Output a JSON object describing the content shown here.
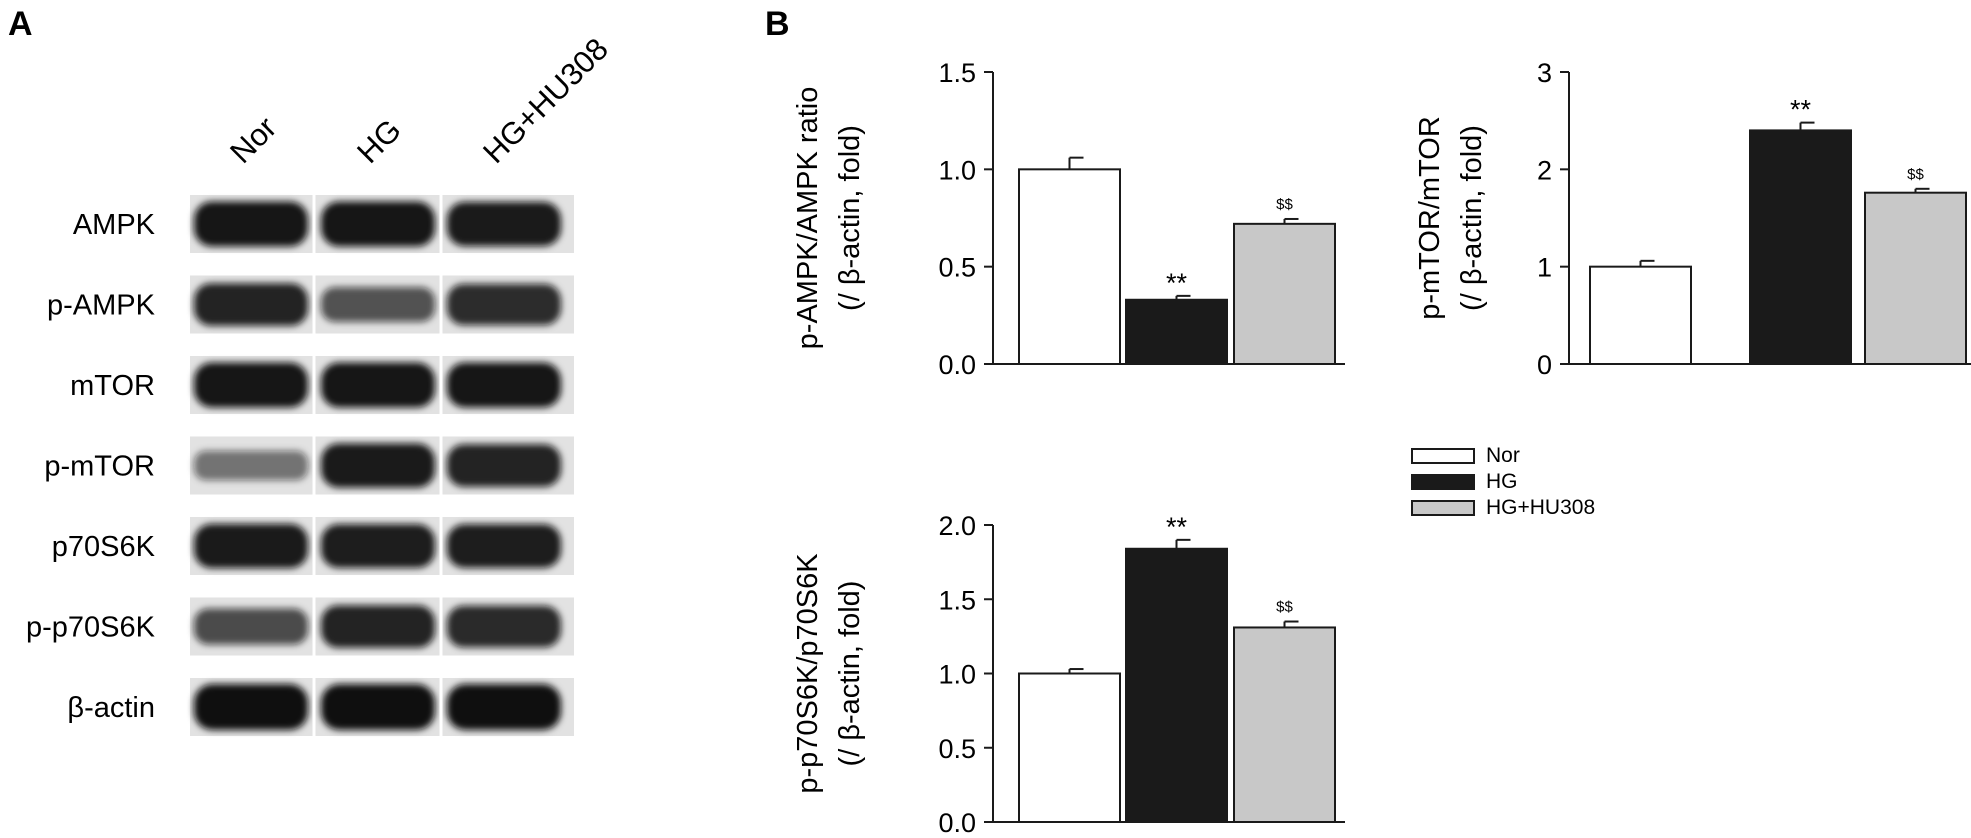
{
  "panels": {
    "a": "A",
    "b": "B"
  },
  "western_blot": {
    "lanes": [
      "Nor",
      "HG",
      "HG+HU308"
    ],
    "bands": [
      {
        "label": "AMPK",
        "intensity": [
          0.95,
          0.95,
          0.92
        ]
      },
      {
        "label": "p-AMPK",
        "intensity": [
          0.85,
          0.55,
          0.8
        ]
      },
      {
        "label": "mTOR",
        "intensity": [
          0.95,
          0.95,
          0.95
        ]
      },
      {
        "label": "p-mTOR",
        "intensity": [
          0.35,
          0.92,
          0.85
        ]
      },
      {
        "label": "p70S6K",
        "intensity": [
          0.92,
          0.9,
          0.9
        ]
      },
      {
        "label": "p-p70S6K",
        "intensity": [
          0.6,
          0.85,
          0.82
        ]
      },
      {
        "label": "β-actin",
        "intensity": [
          0.98,
          0.98,
          0.98
        ]
      }
    ],
    "colors": {
      "band": "#0d0d0d",
      "background": "#e2e2e2"
    }
  },
  "legend": [
    {
      "label": "Nor",
      "color": "#ffffff"
    },
    {
      "label": "HG",
      "color": "#1a1a1a"
    },
    {
      "label": "HG+HU308",
      "color": "#c8c8c8"
    }
  ],
  "chart_data": [
    {
      "type": "bar",
      "categories": [
        "Nor",
        "HG",
        "HG+HU308"
      ],
      "values": [
        1.0,
        0.33,
        0.72
      ],
      "errors": [
        0.06,
        0.02,
        0.025
      ],
      "annotations": [
        "",
        "**",
        "$$"
      ],
      "ylabel": "p-AMPK/AMPK ratio",
      "ylabel2": "(/ β-actin, fold)",
      "ylim": [
        0,
        1.5
      ],
      "yticks": [
        "0.0",
        "0.5",
        "1.0",
        "1.5"
      ],
      "ytick_values": [
        0,
        0.5,
        1.0,
        1.5
      ],
      "colors": [
        "#ffffff",
        "#1a1a1a",
        "#c8c8c8"
      ]
    },
    {
      "type": "bar",
      "categories": [
        "Nor",
        "HG",
        "HG+HU308"
      ],
      "values": [
        1.0,
        2.4,
        1.76
      ],
      "errors": [
        0.06,
        0.08,
        0.04
      ],
      "annotations": [
        "",
        "**",
        "$$"
      ],
      "ylabel": "p-mTOR/mTOR",
      "ylabel2": "(/ β-actin, fold)",
      "ylim": [
        0,
        3
      ],
      "yticks": [
        "0",
        "1",
        "2",
        "3"
      ],
      "ytick_values": [
        0,
        1,
        2,
        3
      ],
      "colors": [
        "#ffffff",
        "#1a1a1a",
        "#c8c8c8"
      ]
    },
    {
      "type": "bar",
      "categories": [
        "Nor",
        "HG",
        "HG+HU308"
      ],
      "values": [
        1.0,
        1.84,
        1.31
      ],
      "errors": [
        0.03,
        0.06,
        0.04
      ],
      "annotations": [
        "",
        "**",
        "$$"
      ],
      "ylabel": "p-p70S6K/p70S6K",
      "ylabel2": "(/ β-actin, fold)",
      "ylim": [
        0,
        2.0
      ],
      "yticks": [
        "0.0",
        "0.5",
        "1.0",
        "1.5",
        "2.0"
      ],
      "ytick_values": [
        0,
        0.5,
        1.0,
        1.5,
        2.0
      ],
      "colors": [
        "#ffffff",
        "#1a1a1a",
        "#c8c8c8"
      ]
    }
  ]
}
